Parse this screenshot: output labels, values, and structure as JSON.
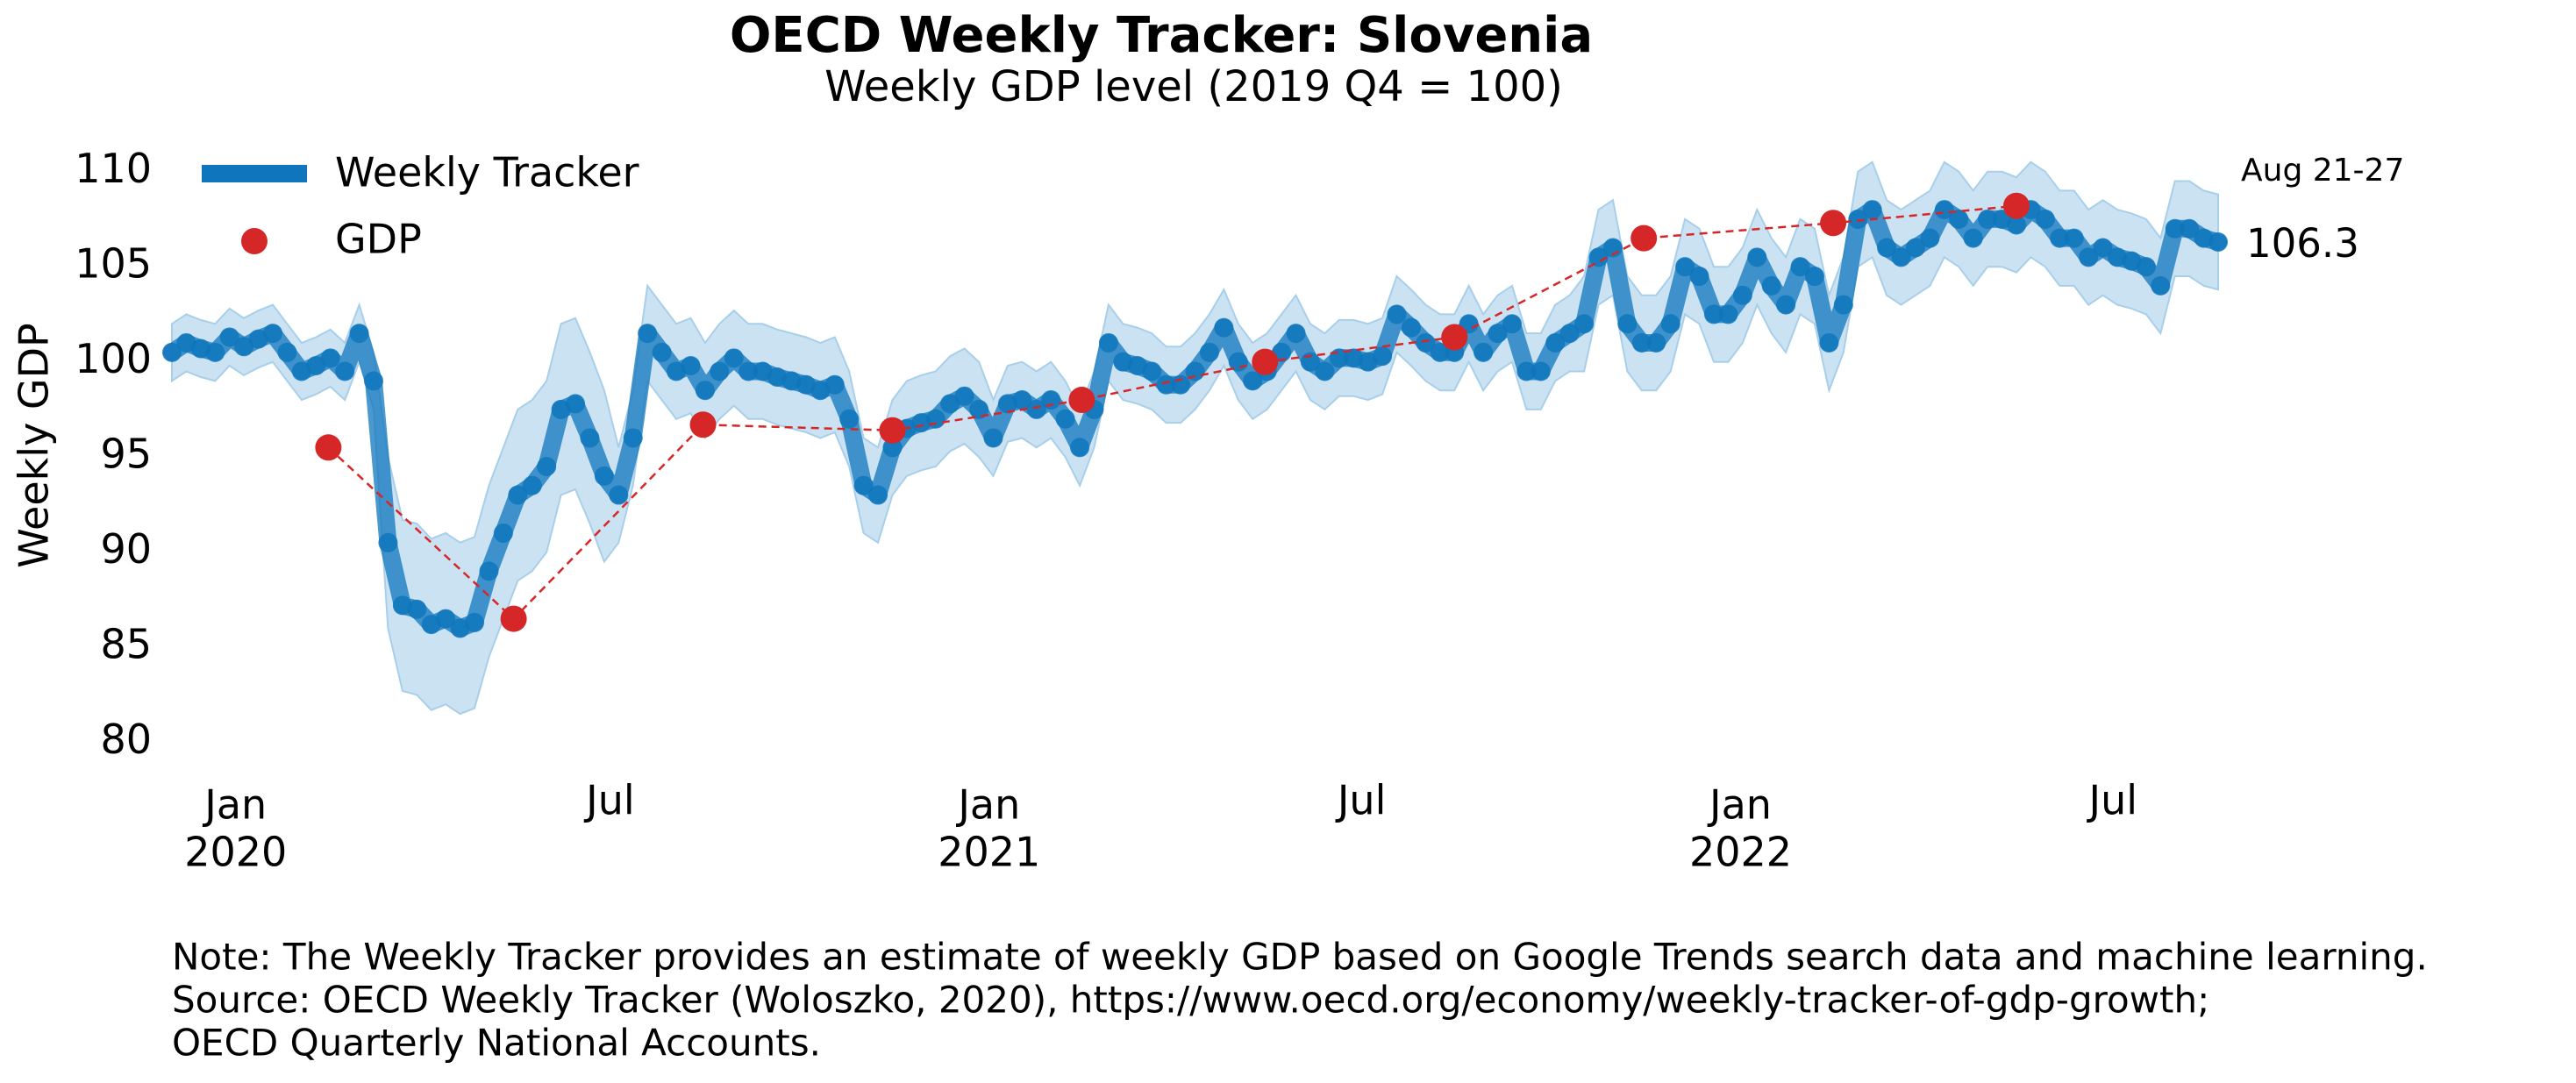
{
  "chart_data": {
    "type": "line",
    "title": "OECD Weekly Tracker: Slovenia",
    "subtitle": "Weekly GDP level (2019 Q4 = 100)",
    "y_label": "Weekly GDP",
    "annotations": [
      "Aug 21-27"
    ],
    "notes": [
      "Note: The Weekly Tracker provides an estimate of weekly GDP based on Google Trends search data and machine learning.",
      "Source: OECD Weekly Tracker (Woloszko, 2020), https://www.oecd.org/economy/weekly-tracker-of-gdp-growth;",
      "OECD Quarterly National Accounts."
    ],
    "xlim": [
      "2019-12-01",
      "2022-08-21"
    ],
    "xticks": [
      {
        "value": "2020-01-01",
        "label": [
          "Jan",
          "2020"
        ]
      },
      {
        "value": "2020-07-01",
        "label": [
          "Jul"
        ]
      },
      {
        "value": "2021-01-01",
        "label": [
          "Jan",
          "2021"
        ]
      },
      {
        "value": "2021-07-01",
        "label": [
          "Jul"
        ]
      },
      {
        "value": "2022-01-01",
        "label": [
          "Jan",
          "2022"
        ]
      },
      {
        "value": "2022-07-01",
        "label": [
          "Jul"
        ]
      }
    ],
    "ylim": [
      78,
      111
    ],
    "yticks": [
      80,
      85,
      90,
      95,
      100,
      105,
      110
    ],
    "grid": false,
    "legend": "upper left",
    "series": [
      {
        "name": "Weekly Tracker",
        "color": "#0f75bc",
        "band_color": "#a8cfea",
        "x": [
          "2019-12-01",
          "2019-12-08",
          "2019-12-15",
          "2019-12-22",
          "2019-12-29",
          "2020-01-05",
          "2020-01-12",
          "2020-01-19",
          "2020-01-26",
          "2020-02-02",
          "2020-02-09",
          "2020-02-16",
          "2020-02-23",
          "2020-03-01",
          "2020-03-08",
          "2020-03-15",
          "2020-03-22",
          "2020-03-29",
          "2020-04-05",
          "2020-04-12",
          "2020-04-19",
          "2020-04-26",
          "2020-05-03",
          "2020-05-10",
          "2020-05-17",
          "2020-05-24",
          "2020-05-31",
          "2020-06-07",
          "2020-06-14",
          "2020-06-21",
          "2020-06-28",
          "2020-07-05",
          "2020-07-12",
          "2020-07-19",
          "2020-07-26",
          "2020-08-02",
          "2020-08-09",
          "2020-08-16",
          "2020-08-23",
          "2020-08-30",
          "2020-09-06",
          "2020-09-13",
          "2020-09-20",
          "2020-09-27",
          "2020-10-04",
          "2020-10-11",
          "2020-10-18",
          "2020-10-25",
          "2020-11-01",
          "2020-11-08",
          "2020-11-15",
          "2020-11-22",
          "2020-11-29",
          "2020-12-06",
          "2020-12-13",
          "2020-12-20",
          "2020-12-27",
          "2021-01-03",
          "2021-01-10",
          "2021-01-17",
          "2021-01-24",
          "2021-01-31",
          "2021-02-07",
          "2021-02-14",
          "2021-02-21",
          "2021-02-28",
          "2021-03-07",
          "2021-03-14",
          "2021-03-21",
          "2021-03-28",
          "2021-04-04",
          "2021-04-11",
          "2021-04-18",
          "2021-04-25",
          "2021-05-02",
          "2021-05-09",
          "2021-05-16",
          "2021-05-23",
          "2021-05-30",
          "2021-06-06",
          "2021-06-13",
          "2021-06-20",
          "2021-06-27",
          "2021-07-04",
          "2021-07-11",
          "2021-07-18",
          "2021-07-25",
          "2021-08-01",
          "2021-08-08",
          "2021-08-15",
          "2021-08-22",
          "2021-08-29",
          "2021-09-05",
          "2021-09-12",
          "2021-09-19",
          "2021-09-26",
          "2021-10-03",
          "2021-10-10",
          "2021-10-17",
          "2021-10-24",
          "2021-10-31",
          "2021-11-07",
          "2021-11-14",
          "2021-11-21",
          "2021-11-28",
          "2021-12-05",
          "2021-12-12",
          "2021-12-19",
          "2021-12-26",
          "2022-01-02",
          "2022-01-09",
          "2022-01-16",
          "2022-01-23",
          "2022-01-30",
          "2022-02-06",
          "2022-02-13",
          "2022-02-20",
          "2022-02-27",
          "2022-03-06",
          "2022-03-13",
          "2022-03-20",
          "2022-03-27",
          "2022-04-03",
          "2022-04-10",
          "2022-04-17",
          "2022-04-24",
          "2022-05-01",
          "2022-05-08",
          "2022-05-15",
          "2022-05-22",
          "2022-05-29",
          "2022-06-05",
          "2022-06-12",
          "2022-06-19",
          "2022-06-26",
          "2022-07-03",
          "2022-07-10",
          "2022-07-17",
          "2022-07-24",
          "2022-07-31",
          "2022-08-07",
          "2022-08-14",
          "2022-08-21"
        ],
        "values": [
          100.5,
          101,
          100.7,
          100.5,
          101.3,
          100.8,
          101.2,
          101.5,
          100.5,
          99.5,
          99.8,
          100.2,
          99.5,
          101.5,
          99,
          90.5,
          87.2,
          87,
          86.2,
          86.5,
          86,
          86.3,
          89,
          91,
          93,
          93.5,
          94.5,
          97.5,
          97.8,
          96,
          94,
          93,
          96,
          101.5,
          100.5,
          99.5,
          99.8,
          98.5,
          99.5,
          100.2,
          99.5,
          99.5,
          99.2,
          99,
          98.8,
          98.5,
          98.8,
          97,
          93.5,
          93,
          95.5,
          96.5,
          96.8,
          97,
          97.8,
          98.2,
          97.5,
          96,
          97.8,
          98,
          97.5,
          98,
          97,
          95.5,
          97.5,
          101,
          100,
          99.8,
          99.5,
          98.8,
          98.8,
          99.5,
          100.5,
          101.8,
          100,
          99,
          99.5,
          100.5,
          101.5,
          100,
          99.5,
          100.2,
          100.2,
          100,
          100.3,
          102.5,
          101.8,
          101,
          100.5,
          100.5,
          102,
          100.5,
          101.5,
          102,
          99.5,
          99.5,
          101,
          101.5,
          102,
          105.5,
          106,
          102,
          101,
          101,
          102,
          105,
          104.5,
          102.5,
          102.5,
          103.5,
          105.5,
          104,
          103,
          105,
          104.5,
          101,
          103,
          107.5,
          108,
          106,
          105.5,
          106,
          106.5,
          108,
          107.5,
          106.5,
          107.5,
          107.5,
          107.2,
          108,
          107.5,
          106.5,
          106.5,
          105.5,
          106,
          105.5,
          105.3,
          105,
          104,
          107,
          107,
          106.5,
          106.3
        ],
        "errors": [
          1.5,
          1.5,
          1.5,
          1.5,
          1.5,
          1.5,
          1.5,
          1.5,
          1.5,
          1.5,
          1.5,
          1.5,
          1.5,
          1.5,
          1.5,
          4.5,
          4.5,
          4.5,
          4.5,
          4.5,
          4.5,
          4.5,
          4.5,
          4.5,
          4.5,
          4.5,
          4.5,
          4.5,
          4.5,
          4.5,
          4.5,
          2.5,
          2.5,
          2.5,
          2.5,
          2.5,
          2.5,
          2.5,
          2.5,
          2.5,
          2.5,
          2.5,
          2.5,
          2.5,
          2.5,
          2.5,
          2.5,
          2.5,
          2.5,
          2.5,
          2.5,
          2.5,
          2.5,
          2.5,
          2.5,
          2.5,
          2.5,
          2,
          2,
          2,
          2,
          2,
          2,
          2,
          2,
          2,
          2,
          2,
          2,
          2,
          2,
          2,
          2,
          2,
          2,
          2,
          2,
          2,
          2,
          2,
          2,
          2,
          2,
          2,
          2,
          2,
          2,
          2,
          2,
          2,
          2,
          2,
          2,
          2,
          2,
          2,
          2,
          2,
          2.5,
          2.5,
          2.5,
          2.5,
          2.5,
          2.5,
          2.5,
          2.5,
          2.5,
          2.5,
          2.5,
          2.5,
          2.5,
          2.5,
          2.5,
          2.5,
          2.5,
          2.5,
          2.5,
          2.5,
          2.5,
          2.5,
          2.5,
          2.5,
          2.5,
          2.5,
          2.5,
          2.5,
          2.5,
          2.5,
          2.5,
          2.5,
          2.5,
          2.5,
          2.5,
          2.5,
          2.5,
          2.5,
          2.5,
          2.5,
          2.5,
          2.5,
          2.5,
          2.5,
          2.5
        ]
      },
      {
        "name": "GDP",
        "color": "#d62728",
        "x": [
          "2020-02-15",
          "2020-05-15",
          "2020-08-15",
          "2020-11-15",
          "2021-02-15",
          "2021-05-15",
          "2021-08-15",
          "2021-11-15",
          "2022-02-15",
          "2022-05-15"
        ],
        "values": [
          95.5,
          86.5,
          96.7,
          96.4,
          98,
          100,
          101.3,
          106.5,
          107.3,
          108.2
        ]
      }
    ]
  }
}
